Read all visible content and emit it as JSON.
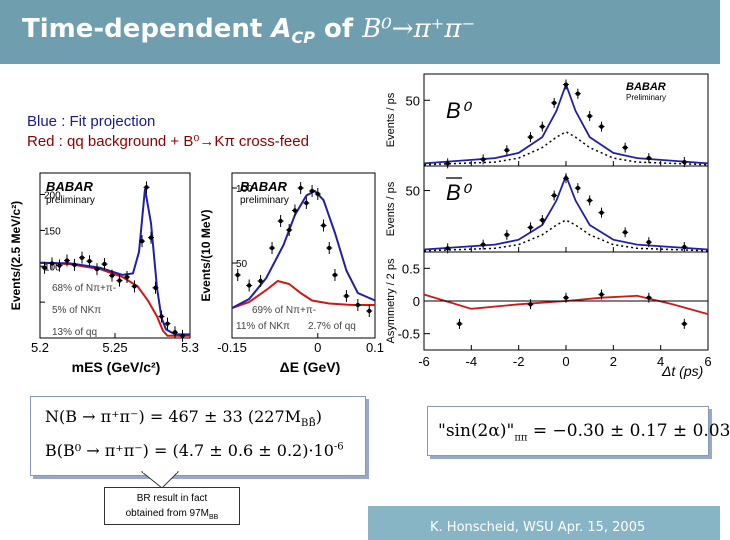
{
  "slide": {
    "title_prefix": "Time-dependent ",
    "title_a": "A",
    "title_cp": "CP",
    "title_of": " of ",
    "title_decay": "B⁰→π⁺π⁻",
    "legend_blue": "Blue : Fit projection",
    "legend_red": "Red : qq  background + B⁰→Kπ cross-feed",
    "footer": "K. Honscheid, WSU  Apr. 15, 2005",
    "callout": [
      "BR result in fact",
      "obtained from 97M",
      "BB"
    ]
  },
  "formulas": {
    "n_line": "N(B → π⁺π⁻) = 467 ± 33   (227M",
    "n_line_end": ")",
    "n_sub": "BB̄",
    "br_line": "B(B⁰ → π⁺π⁻) = (4.7 ± 0.6 ± 0.2)·10",
    "br_exp": "-6",
    "sin_result": "\"sin(2α)\"",
    "sin_sub": "ππ",
    "sin_value": " = −0.30 ± 0.17 ± 0.03"
  },
  "colors": {
    "fit": "#1f1fa8",
    "background": "#d01818",
    "header": "#6f9fae",
    "footer": "#87b5c6"
  },
  "chart_data": [
    {
      "type": "scatter",
      "title": "mES",
      "xlabel": "mES (GeV/c²)",
      "ylabel": "Events/(2.5 MeV/c²)",
      "xlim": [
        5.2,
        5.3
      ],
      "ylim": [
        0,
        230
      ],
      "xticks": [
        5.2,
        5.25,
        5.3
      ],
      "xtick_labels": [
        "5.2",
        "5.25",
        "5.3"
      ],
      "yticks": [
        50,
        100,
        150,
        200
      ],
      "yticks_labelled": [
        100,
        150,
        200
      ],
      "watermark": "BABAR",
      "sublabel": "preliminary",
      "annotations": [
        "68% of Nπ+π-",
        "5% of NKπ",
        "13% of qq"
      ],
      "points": [
        [
          5.203,
          98
        ],
        [
          5.208,
          104
        ],
        [
          5.213,
          101
        ],
        [
          5.218,
          108
        ],
        [
          5.223,
          102
        ],
        [
          5.228,
          112
        ],
        [
          5.233,
          107
        ],
        [
          5.238,
          96
        ],
        [
          5.243,
          103
        ],
        [
          5.248,
          87
        ],
        [
          5.253,
          80
        ],
        [
          5.258,
          85
        ],
        [
          5.263,
          72
        ],
        [
          5.268,
          135
        ],
        [
          5.271,
          210
        ],
        [
          5.274,
          140
        ],
        [
          5.277,
          70
        ],
        [
          5.281,
          30
        ],
        [
          5.285,
          20
        ],
        [
          5.29,
          8
        ],
        [
          5.295,
          3
        ]
      ],
      "fit": [
        [
          5.2,
          105
        ],
        [
          5.22,
          104
        ],
        [
          5.24,
          98
        ],
        [
          5.255,
          88
        ],
        [
          5.262,
          90
        ],
        [
          5.266,
          120
        ],
        [
          5.27,
          208
        ],
        [
          5.274,
          160
        ],
        [
          5.278,
          70
        ],
        [
          5.281,
          28
        ],
        [
          5.284,
          12
        ],
        [
          5.29,
          5
        ],
        [
          5.3,
          5
        ]
      ],
      "background": [
        [
          5.2,
          105
        ],
        [
          5.22,
          103
        ],
        [
          5.24,
          96
        ],
        [
          5.255,
          85
        ],
        [
          5.265,
          72
        ],
        [
          5.272,
          52
        ],
        [
          5.278,
          30
        ],
        [
          5.282,
          10
        ],
        [
          5.285,
          3
        ],
        [
          5.3,
          3
        ]
      ]
    },
    {
      "type": "scatter",
      "title": "ΔE",
      "xlabel": "ΔE (GeV)",
      "ylabel": "Events/(10 MeV)",
      "xlim": [
        -0.15,
        0.1
      ],
      "ylim": [
        0,
        110
      ],
      "xticks": [
        -0.15,
        0,
        0.1
      ],
      "xtick_labels": [
        "-0.15",
        "0",
        "0.1"
      ],
      "yticks": [
        50,
        100
      ],
      "yticks_labelled": [
        50,
        100
      ],
      "watermark": "BABAR",
      "sublabel": "preliminary",
      "annotations": [
        "69% of Nπ+π-",
        "11% of NKπ",
        "2.7% of qq"
      ],
      "points": [
        [
          -0.14,
          42
        ],
        [
          -0.12,
          35
        ],
        [
          -0.1,
          38
        ],
        [
          -0.08,
          60
        ],
        [
          -0.065,
          78
        ],
        [
          -0.05,
          72
        ],
        [
          -0.04,
          85
        ],
        [
          -0.03,
          100
        ],
        [
          -0.02,
          90
        ],
        [
          -0.01,
          98
        ],
        [
          0,
          96
        ],
        [
          0.01,
          75
        ],
        [
          0.02,
          60
        ],
        [
          0.03,
          42
        ],
        [
          0.05,
          28
        ],
        [
          0.07,
          22
        ],
        [
          0.09,
          18
        ]
      ],
      "fit": [
        [
          -0.15,
          20
        ],
        [
          -0.12,
          26
        ],
        [
          -0.09,
          40
        ],
        [
          -0.06,
          62
        ],
        [
          -0.04,
          82
        ],
        [
          -0.02,
          95
        ],
        [
          -0.005,
          98
        ],
        [
          0.01,
          92
        ],
        [
          0.03,
          70
        ],
        [
          0.05,
          45
        ],
        [
          0.07,
          30
        ],
        [
          0.1,
          25
        ]
      ],
      "background": [
        [
          -0.15,
          20
        ],
        [
          -0.12,
          24
        ],
        [
          -0.09,
          32
        ],
        [
          -0.07,
          38
        ],
        [
          -0.05,
          36
        ],
        [
          -0.03,
          30
        ],
        [
          -0.01,
          25
        ],
        [
          0.02,
          23
        ],
        [
          0.06,
          22
        ],
        [
          0.1,
          22
        ]
      ]
    },
    {
      "type": "scatter",
      "title": "Δt",
      "xlabel": "Δt (ps)",
      "xlim": [
        -6,
        6
      ],
      "xticks": [
        -6,
        -4,
        -2,
        0,
        2,
        4,
        6
      ],
      "xtick_labels": [
        "-6",
        "-4",
        "-2",
        "0",
        "2",
        "4",
        "6"
      ],
      "watermark": "BABAR",
      "sublabel": "Preliminary",
      "panels": [
        {
          "label": "B0",
          "ylabel": "Events / ps",
          "ylim": [
            0,
            70
          ],
          "yticks": [
            50
          ],
          "yticks_labelled": [
            50
          ],
          "points": [
            [
              -5,
              2
            ],
            [
              -3.5,
              5
            ],
            [
              -2.5,
              12
            ],
            [
              -1.5,
              22
            ],
            [
              -1,
              30
            ],
            [
              -0.5,
              48
            ],
            [
              0,
              62
            ],
            [
              0.5,
              55
            ],
            [
              1,
              38
            ],
            [
              1.5,
              30
            ],
            [
              2.5,
              14
            ],
            [
              3.5,
              6
            ],
            [
              5,
              3
            ]
          ],
          "fit": [
            [
              -6,
              2
            ],
            [
              -3,
              6
            ],
            [
              -2,
              10
            ],
            [
              -1,
              22
            ],
            [
              -0.4,
              42
            ],
            [
              0,
              62
            ],
            [
              0.4,
              42
            ],
            [
              1,
              22
            ],
            [
              2,
              10
            ],
            [
              3,
              6
            ],
            [
              6,
              2
            ]
          ],
          "background": [
            [
              -6,
              1
            ],
            [
              -3,
              3
            ],
            [
              -2,
              6
            ],
            [
              -1,
              14
            ],
            [
              -0.4,
              22
            ],
            [
              0,
              26
            ],
            [
              0.4,
              22
            ],
            [
              1,
              14
            ],
            [
              2,
              6
            ],
            [
              3,
              3
            ],
            [
              6,
              1
            ]
          ]
        },
        {
          "label": "B0bar",
          "ylabel": "Events / ps",
          "ylim": [
            0,
            70
          ],
          "yticks": [
            50
          ],
          "yticks_labelled": [
            50
          ],
          "points": [
            [
              -5,
              3
            ],
            [
              -3.5,
              6
            ],
            [
              -2.5,
              14
            ],
            [
              -1.5,
              20
            ],
            [
              -1,
              26
            ],
            [
              -0.5,
              46
            ],
            [
              0,
              60
            ],
            [
              0.5,
              52
            ],
            [
              1,
              42
            ],
            [
              1.5,
              32
            ],
            [
              2.5,
              16
            ],
            [
              3.5,
              8
            ],
            [
              5,
              4
            ]
          ],
          "fit": [
            [
              -6,
              2
            ],
            [
              -3,
              6
            ],
            [
              -2,
              10
            ],
            [
              -1,
              22
            ],
            [
              -0.4,
              42
            ],
            [
              0,
              62
            ],
            [
              0.4,
              42
            ],
            [
              1,
              22
            ],
            [
              2,
              10
            ],
            [
              3,
              6
            ],
            [
              6,
              2
            ]
          ],
          "background": [
            [
              -6,
              1
            ],
            [
              -3,
              3
            ],
            [
              -2,
              6
            ],
            [
              -1,
              14
            ],
            [
              -0.4,
              22
            ],
            [
              0,
              26
            ],
            [
              0.4,
              22
            ],
            [
              1,
              14
            ],
            [
              2,
              6
            ],
            [
              3,
              3
            ],
            [
              6,
              1
            ]
          ]
        },
        {
          "label": "",
          "ylabel": "Asymmetry / 2 ps",
          "ylim": [
            -0.75,
            0.75
          ],
          "yticks": [
            -0.5,
            0,
            0.5
          ],
          "yticks_labelled": [
            -0.5,
            0,
            0.5
          ],
          "points": [
            [
              -4.5,
              -0.35
            ],
            [
              -1.5,
              -0.05
            ],
            [
              0,
              0.05
            ],
            [
              1.5,
              0.1
            ],
            [
              3.5,
              0.05
            ],
            [
              5,
              -0.35
            ]
          ],
          "fit": [
            [
              -6,
              0.1
            ],
            [
              -4,
              -0.12
            ],
            [
              -2,
              -0.05
            ],
            [
              0,
              0
            ],
            [
              1.5,
              0.05
            ],
            [
              3,
              0.08
            ],
            [
              4.5,
              -0.05
            ],
            [
              6,
              -0.2
            ]
          ]
        }
      ]
    }
  ]
}
